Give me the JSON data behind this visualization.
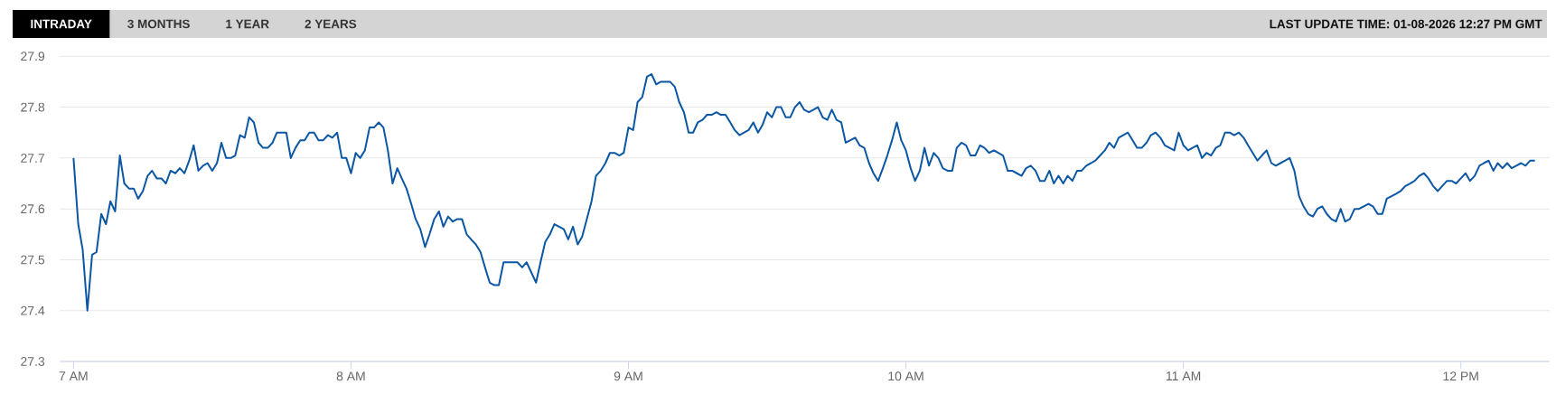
{
  "chart_data": {
    "type": "line",
    "title": "INTRADAY",
    "subtitle": "LAST UPDATE TIME: 01-08-2026 12:27 PM GMT",
    "annotations": [
      "3 MONTHS",
      "1 YEAR",
      "2 YEARS"
    ],
    "x": [
      7,
      7.017,
      7.033,
      7.05,
      7.067,
      7.083,
      7.1,
      7.117,
      7.133,
      7.15,
      7.167,
      7.183,
      7.2,
      7.217,
      7.233,
      7.25,
      7.267,
      7.283,
      7.3,
      7.317,
      7.333,
      7.35,
      7.367,
      7.383,
      7.4,
      7.417,
      7.433,
      7.45,
      7.467,
      7.483,
      7.5,
      7.517,
      7.533,
      7.55,
      7.567,
      7.583,
      7.6,
      7.617,
      7.633,
      7.65,
      7.667,
      7.683,
      7.7,
      7.717,
      7.733,
      7.75,
      7.767,
      7.783,
      7.8,
      7.817,
      7.833,
      7.85,
      7.867,
      7.883,
      7.9,
      7.917,
      7.933,
      7.95,
      7.967,
      7.983,
      8,
      8.017,
      8.033,
      8.05,
      8.067,
      8.083,
      8.1,
      8.117,
      8.133,
      8.15,
      8.167,
      8.183,
      8.2,
      8.217,
      8.233,
      8.25,
      8.267,
      8.283,
      8.3,
      8.317,
      8.333,
      8.35,
      8.367,
      8.383,
      8.4,
      8.417,
      8.433,
      8.45,
      8.467,
      8.483,
      8.5,
      8.517,
      8.533,
      8.55,
      8.567,
      8.583,
      8.6,
      8.617,
      8.633,
      8.65,
      8.667,
      8.683,
      8.7,
      8.717,
      8.733,
      8.75,
      8.767,
      8.783,
      8.8,
      8.817,
      8.833,
      8.85,
      8.867,
      8.883,
      8.9,
      8.917,
      8.933,
      8.95,
      8.967,
      8.983,
      9,
      9.017,
      9.033,
      9.05,
      9.067,
      9.083,
      9.1,
      9.117,
      9.133,
      9.15,
      9.167,
      9.183,
      9.2,
      9.217,
      9.233,
      9.25,
      9.267,
      9.283,
      9.3,
      9.317,
      9.333,
      9.35,
      9.367,
      9.383,
      9.4,
      9.417,
      9.433,
      9.45,
      9.467,
      9.483,
      9.5,
      9.517,
      9.533,
      9.55,
      9.567,
      9.583,
      9.6,
      9.617,
      9.633,
      9.65,
      9.667,
      9.683,
      9.7,
      9.717,
      9.733,
      9.75,
      9.767,
      9.783,
      9.8,
      9.817,
      9.833,
      9.85,
      9.867,
      9.883,
      9.9,
      9.917,
      9.933,
      9.95,
      9.967,
      9.983,
      10,
      10.017,
      10.033,
      10.05,
      10.067,
      10.083,
      10.1,
      10.117,
      10.133,
      10.15,
      10.167,
      10.183,
      10.2,
      10.217,
      10.233,
      10.25,
      10.267,
      10.283,
      10.3,
      10.317,
      10.333,
      10.35,
      10.367,
      10.383,
      10.4,
      10.417,
      10.433,
      10.45,
      10.467,
      10.483,
      10.5,
      10.517,
      10.533,
      10.55,
      10.567,
      10.583,
      10.6,
      10.617,
      10.633,
      10.65,
      10.667,
      10.683,
      10.7,
      10.717,
      10.733,
      10.75,
      10.767,
      10.783,
      10.8,
      10.817,
      10.833,
      10.85,
      10.867,
      10.883,
      10.9,
      10.917,
      10.933,
      10.95,
      10.967,
      10.983,
      11,
      11.017,
      11.033,
      11.05,
      11.067,
      11.083,
      11.1,
      11.117,
      11.133,
      11.15,
      11.167,
      11.183,
      11.2,
      11.217,
      11.233,
      11.25,
      11.267,
      11.283,
      11.3,
      11.317,
      11.333,
      11.35,
      11.367,
      11.383,
      11.4,
      11.417,
      11.433,
      11.45,
      11.467,
      11.483,
      11.5,
      11.517,
      11.533,
      11.55,
      11.567,
      11.583,
      11.6,
      11.617,
      11.633,
      11.65,
      11.667,
      11.683,
      11.7,
      11.717,
      11.733,
      11.75,
      11.767,
      11.783,
      11.8,
      11.817,
      11.833,
      11.85,
      11.867,
      11.883,
      11.9,
      11.917,
      11.933,
      11.95,
      11.967,
      11.983,
      12,
      12.017,
      12.033,
      12.05,
      12.067,
      12.083,
      12.1,
      12.117,
      12.133,
      12.15,
      12.167,
      12.183,
      12.2,
      12.217,
      12.233,
      12.25,
      12.267
    ],
    "values": [
      27.7,
      27.57,
      27.52,
      27.4,
      27.51,
      27.515,
      27.59,
      27.57,
      27.615,
      27.595,
      27.705,
      27.65,
      27.64,
      27.64,
      27.62,
      27.635,
      27.665,
      27.675,
      27.66,
      27.66,
      27.65,
      27.675,
      27.67,
      27.68,
      27.67,
      27.695,
      27.725,
      27.675,
      27.685,
      27.69,
      27.675,
      27.69,
      27.73,
      27.7,
      27.7,
      27.705,
      27.745,
      27.74,
      27.78,
      27.77,
      27.73,
      27.72,
      27.72,
      27.73,
      27.75,
      27.75,
      27.75,
      27.7,
      27.72,
      27.735,
      27.735,
      27.75,
      27.75,
      27.735,
      27.735,
      27.745,
      27.74,
      27.75,
      27.7,
      27.7,
      27.67,
      27.71,
      27.7,
      27.715,
      27.76,
      27.76,
      27.77,
      27.76,
      27.715,
      27.65,
      27.68,
      27.66,
      27.64,
      27.61,
      27.58,
      27.56,
      27.525,
      27.55,
      27.58,
      27.595,
      27.565,
      27.585,
      27.575,
      27.58,
      27.58,
      27.55,
      27.54,
      27.53,
      27.515,
      27.485,
      27.455,
      27.45,
      27.45,
      27.495,
      27.495,
      27.495,
      27.495,
      27.485,
      27.495,
      27.475,
      27.455,
      27.495,
      27.535,
      27.55,
      27.57,
      27.565,
      27.56,
      27.54,
      27.565,
      27.53,
      27.545,
      27.58,
      27.615,
      27.665,
      27.675,
      27.69,
      27.71,
      27.71,
      27.705,
      27.71,
      27.76,
      27.755,
      27.81,
      27.82,
      27.86,
      27.865,
      27.845,
      27.85,
      27.85,
      27.85,
      27.84,
      27.81,
      27.79,
      27.75,
      27.75,
      27.77,
      27.775,
      27.785,
      27.785,
      27.79,
      27.785,
      27.785,
      27.77,
      27.755,
      27.745,
      27.75,
      27.755,
      27.77,
      27.75,
      27.765,
      27.79,
      27.78,
      27.8,
      27.8,
      27.78,
      27.78,
      27.8,
      27.81,
      27.795,
      27.79,
      27.795,
      27.8,
      27.78,
      27.775,
      27.795,
      27.775,
      27.77,
      27.73,
      27.735,
      27.74,
      27.725,
      27.72,
      27.69,
      27.67,
      27.655,
      27.68,
      27.705,
      27.735,
      27.77,
      27.735,
      27.715,
      27.68,
      27.655,
      27.675,
      27.72,
      27.685,
      27.71,
      27.7,
      27.68,
      27.675,
      27.675,
      27.72,
      27.73,
      27.725,
      27.705,
      27.705,
      27.725,
      27.72,
      27.71,
      27.715,
      27.71,
      27.705,
      27.675,
      27.675,
      27.67,
      27.665,
      27.68,
      27.685,
      27.675,
      27.655,
      27.655,
      27.675,
      27.65,
      27.665,
      27.65,
      27.665,
      27.655,
      27.675,
      27.675,
      27.685,
      27.69,
      27.695,
      27.705,
      27.715,
      27.73,
      27.72,
      27.74,
      27.745,
      27.75,
      27.735,
      27.72,
      27.72,
      27.73,
      27.745,
      27.75,
      27.74,
      27.725,
      27.72,
      27.715,
      27.75,
      27.725,
      27.715,
      27.72,
      27.725,
      27.7,
      27.71,
      27.705,
      27.72,
      27.725,
      27.75,
      27.75,
      27.745,
      27.75,
      27.74,
      27.725,
      27.71,
      27.695,
      27.705,
      27.715,
      27.69,
      27.685,
      27.69,
      27.695,
      27.7,
      27.675,
      27.625,
      27.605,
      27.59,
      27.585,
      27.6,
      27.605,
      27.59,
      27.58,
      27.575,
      27.6,
      27.575,
      27.58,
      27.6,
      27.6,
      27.605,
      27.61,
      27.605,
      27.59,
      27.59,
      27.62,
      27.625,
      27.63,
      27.635,
      27.645,
      27.65,
      27.655,
      27.665,
      27.67,
      27.66,
      27.645,
      27.635,
      27.645,
      27.655,
      27.655,
      27.65,
      27.66,
      27.67,
      27.655,
      27.665,
      27.685,
      27.69,
      27.695,
      27.675,
      27.69,
      27.68,
      27.69,
      27.68,
      27.685,
      27.69,
      27.685,
      27.695,
      27.695
    ],
    "color": "#0b57a3",
    "xlim": [
      6.95,
      12.32
    ],
    "ylim": [
      27.3,
      27.9
    ],
    "xticks": [
      {
        "value": 7,
        "label": "7 AM"
      },
      {
        "value": 8,
        "label": "8 AM"
      },
      {
        "value": 9,
        "label": "9 AM"
      },
      {
        "value": 10,
        "label": "10 AM"
      },
      {
        "value": 11,
        "label": "11 AM"
      },
      {
        "value": 12,
        "label": "12 PM"
      }
    ],
    "yticks": [
      27.3,
      27.4,
      27.5,
      27.6,
      27.7,
      27.8,
      27.9
    ],
    "grid": "y",
    "marker": "none",
    "line_style": "solid"
  }
}
